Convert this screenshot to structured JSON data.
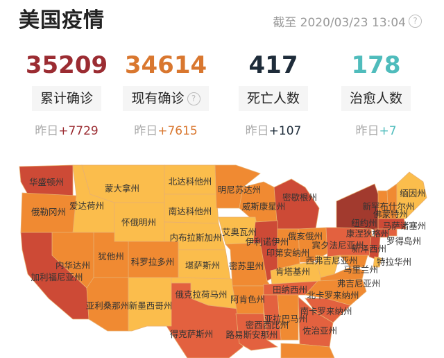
{
  "header": {
    "title": "美国疫情",
    "as_of": "截至 2020/03/23 13:04",
    "help_icon": "question-circle-icon"
  },
  "stats": [
    {
      "value": "35209",
      "label": "累计确诊",
      "yesterday_prefix": "昨日",
      "yesterday_delta": "+7729",
      "color": "#9b2c32",
      "delta_color": "#9b2c32"
    },
    {
      "value": "34614",
      "label": "现有确诊",
      "yesterday_prefix": "昨日",
      "yesterday_delta": "+7615",
      "color": "#d9772f",
      "delta_color": "#d9772f",
      "has_help": true
    },
    {
      "value": "417",
      "label": "死亡人数",
      "yesterday_prefix": "昨日",
      "yesterday_delta": "+107",
      "color": "#1e2c3a",
      "delta_color": "#1e2c3a"
    },
    {
      "value": "178",
      "label": "治愈人数",
      "yesterday_prefix": "昨日",
      "yesterday_delta": "+7",
      "color": "#4fbcbc",
      "delta_color": "#4fbcbc"
    }
  ],
  "map": {
    "colors": {
      "l1": "#fbbd4c",
      "l2": "#f08a32",
      "l3": "#e3613f",
      "l4": "#cd4a36",
      "l5": "#a23a2e"
    },
    "states": [
      {
        "name": "华盛顿州",
        "level": "l4"
      },
      {
        "name": "俄勒冈州",
        "level": "l2"
      },
      {
        "name": "爱达荷州",
        "level": "l1"
      },
      {
        "name": "蒙大拿州",
        "level": "l1"
      },
      {
        "name": "怀俄明州",
        "level": "l1"
      },
      {
        "name": "北达科他州",
        "level": "l1"
      },
      {
        "name": "南达科他州",
        "level": "l1"
      },
      {
        "name": "内布拉斯加州",
        "level": "l1"
      },
      {
        "name": "堪萨斯州",
        "level": "l1"
      },
      {
        "name": "俄克拉荷马州",
        "level": "l1"
      },
      {
        "name": "得克萨斯州",
        "level": "l3"
      },
      {
        "name": "科罗拉多州",
        "level": "l2"
      },
      {
        "name": "犹他州",
        "level": "l2"
      },
      {
        "name": "内华达州",
        "level": "l2"
      },
      {
        "name": "加利福尼亚州",
        "level": "l4"
      },
      {
        "name": "亚利桑那州",
        "level": "l2"
      },
      {
        "name": "新墨西哥州",
        "level": "l1"
      },
      {
        "name": "明尼苏达州",
        "level": "l2"
      },
      {
        "name": "威斯康星州",
        "level": "l2"
      },
      {
        "name": "密歇根州",
        "level": "l4"
      },
      {
        "name": "艾奥瓦州",
        "level": "l1"
      },
      {
        "name": "伊利诺伊州",
        "level": "l4"
      },
      {
        "name": "印第安纳州",
        "level": "l2"
      },
      {
        "name": "俄亥俄州",
        "level": "l2"
      },
      {
        "name": "宾夕法尼亚州",
        "level": "l3"
      },
      {
        "name": "密苏里州",
        "level": "l2"
      },
      {
        "name": "肯塔基州",
        "level": "l1"
      },
      {
        "name": "西弗吉尼亚州",
        "level": "l1"
      },
      {
        "name": "马里兰州",
        "level": "l2"
      },
      {
        "name": "弗吉尼亚州",
        "level": "l2"
      },
      {
        "name": "田纳西州",
        "level": "l3"
      },
      {
        "name": "北卡罗来纳州",
        "level": "l2"
      },
      {
        "name": "阿肯色州",
        "level": "l2"
      },
      {
        "name": "南卡罗来纳州",
        "level": "l3"
      },
      {
        "name": "亚拉巴马州",
        "level": "l2"
      },
      {
        "name": "密西西比州",
        "level": "l3"
      },
      {
        "name": "路易斯安那州",
        "level": "l3"
      },
      {
        "name": "佐治亚州",
        "level": "l3"
      },
      {
        "name": "纽约州",
        "level": "l5"
      },
      {
        "name": "康涅狄格州",
        "level": "l4"
      },
      {
        "name": "新泽西州",
        "level": "l4"
      },
      {
        "name": "特拉华州",
        "level": "l1"
      },
      {
        "name": "罗得岛州",
        "level": "l3"
      },
      {
        "name": "马萨诸塞州",
        "level": "l4"
      },
      {
        "name": "佛蒙特州",
        "level": "l2"
      },
      {
        "name": "新罕布什尔州",
        "level": "l2"
      },
      {
        "name": "缅因州",
        "level": "l1"
      },
      {
        "level": "l2"
      }
    ]
  }
}
